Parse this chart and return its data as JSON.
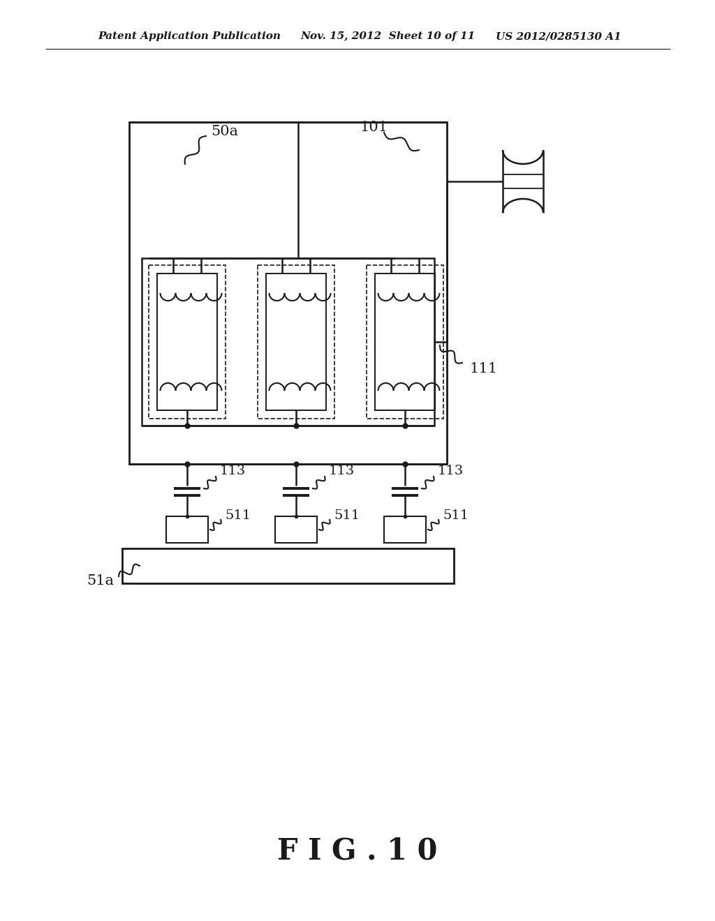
{
  "bg_color": "#ffffff",
  "line_color": "#1a1a1a",
  "header_text_left": "Patent Application Publication",
  "header_text_mid": "Nov. 15, 2012  Sheet 10 of 11",
  "header_text_right": "US 2012/0285130 A1",
  "fig_label": "F I G . 1 0",
  "label_50a": "50a",
  "label_101": "101",
  "label_111": "111",
  "label_113": "113",
  "label_511": "511",
  "label_51a": "51a",
  "header_fontsize": 11,
  "fig_label_fontsize": 30,
  "annot_fontsize": 15
}
